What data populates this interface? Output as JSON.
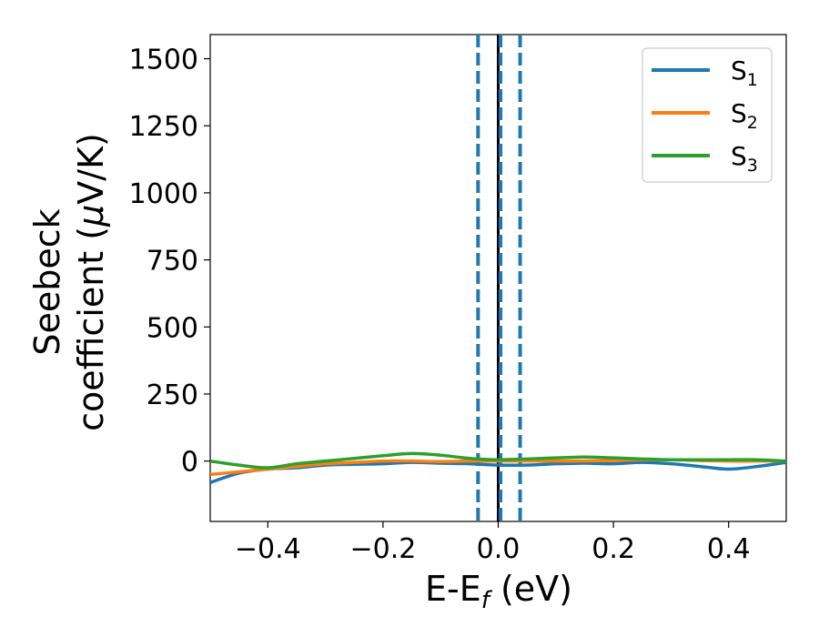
{
  "chart_data": {
    "type": "line",
    "title": "",
    "xlabel": {
      "main": "E-E",
      "sub": "f",
      "unit": " (eV)"
    },
    "ylabel": {
      "line1": "Seebeck",
      "line2": "coefficient  (",
      "mu": "μ",
      "unit": "V/K)"
    },
    "xlim": [
      -0.5,
      0.5
    ],
    "ylim": [
      -225,
      1590
    ],
    "xticks": [
      -0.4,
      -0.2,
      0.0,
      0.2,
      0.4
    ],
    "xtick_labels": [
      "−0.4",
      "−0.2",
      "0.0",
      "0.2",
      "0.4"
    ],
    "yticks": [
      0,
      250,
      500,
      750,
      1000,
      1250,
      1500
    ],
    "ytick_labels": [
      "0",
      "250",
      "500",
      "750",
      "1000",
      "1250",
      "1500"
    ],
    "grid": false,
    "legend_position": "top-right",
    "x": [
      -0.5,
      -0.45,
      -0.4,
      -0.35,
      -0.3,
      -0.25,
      -0.2,
      -0.15,
      -0.1,
      -0.05,
      0.0,
      0.05,
      0.1,
      0.15,
      0.2,
      0.25,
      0.3,
      0.35,
      0.4,
      0.45,
      0.5
    ],
    "series": [
      {
        "name": "S",
        "sub": "1",
        "color": "#1f77b4",
        "values": [
          -80,
          -45,
          -30,
          -25,
          -15,
          -12,
          -10,
          -5,
          -8,
          -10,
          -15,
          -15,
          -10,
          -8,
          -10,
          -5,
          -10,
          -20,
          -30,
          -20,
          -5
        ]
      },
      {
        "name": "S",
        "sub": "2",
        "color": "#ff7f0e",
        "values": [
          -50,
          -40,
          -30,
          -20,
          -10,
          -5,
          0,
          0,
          -2,
          0,
          0,
          0,
          0,
          0,
          2,
          5,
          5,
          2,
          0,
          0,
          0
        ]
      },
      {
        "name": "S",
        "sub": "3",
        "color": "#2ca02c",
        "values": [
          0,
          -15,
          -25,
          -10,
          0,
          10,
          20,
          28,
          22,
          10,
          5,
          8,
          12,
          15,
          12,
          8,
          5,
          5,
          5,
          5,
          0
        ]
      }
    ],
    "vlines": [
      {
        "x": 0.0,
        "style": "solid",
        "color": "#000000"
      },
      {
        "x": -0.035,
        "style": "dashed",
        "color": "#1f77b4"
      },
      {
        "x": 0.004,
        "style": "dashed",
        "color": "#1f77b4"
      },
      {
        "x": 0.038,
        "style": "dashed",
        "color": "#1f77b4"
      }
    ]
  }
}
